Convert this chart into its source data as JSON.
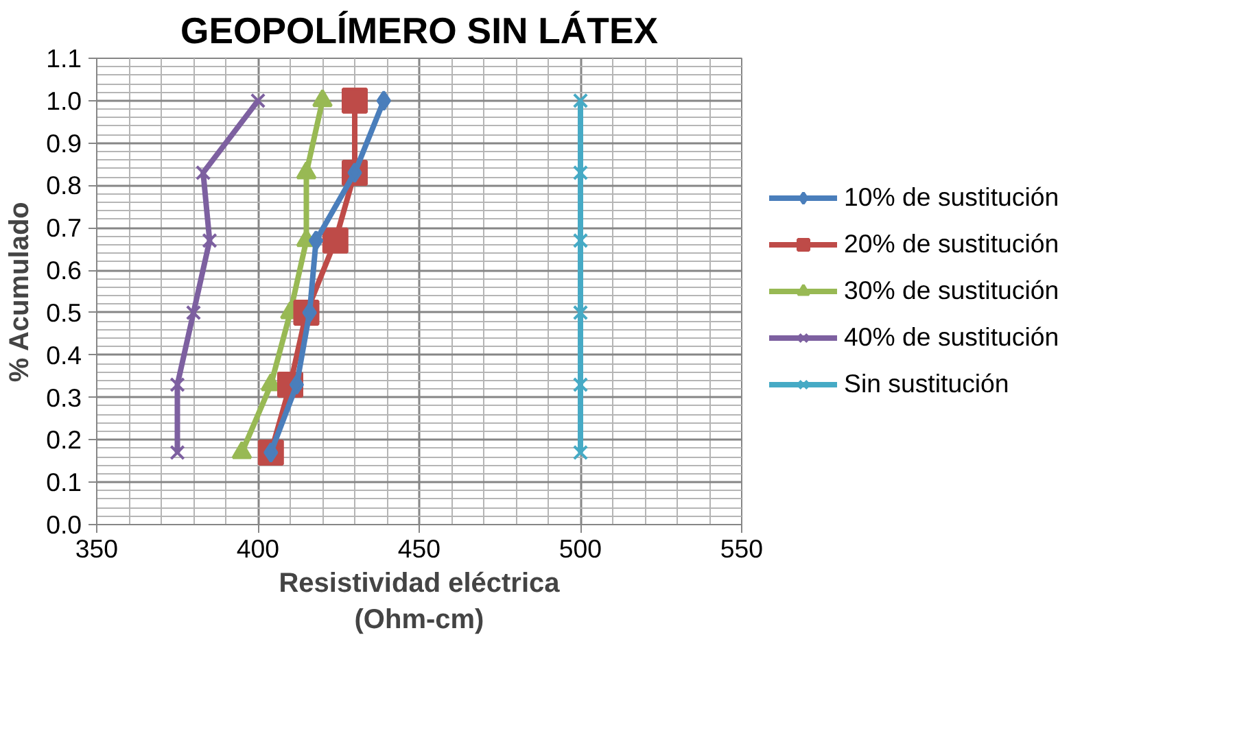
{
  "chart_data": {
    "type": "line",
    "title": "GEOPOLÍMERO SIN LÁTEX",
    "xlabel": "Resistividad eléctrica\n(Ohm-cm)",
    "ylabel": "% Acumulado",
    "xlim": [
      350,
      550
    ],
    "xticks": [
      350,
      400,
      450,
      500,
      550
    ],
    "ylim": [
      0.0,
      1.1
    ],
    "yticks": [
      {
        "value": 0.0,
        "label": "0.0"
      },
      0.1,
      0.2,
      0.3,
      0.4,
      0.5,
      0.6,
      0.7,
      0.8,
      0.9,
      {
        "value": 1.0,
        "label": "1.0"
      },
      1.1
    ],
    "grid": true,
    "legend": "right",
    "series": [
      {
        "name": "10% de sustitución",
        "color": "#4a7ebb",
        "marker": "diamond",
        "x": [
          404,
          412,
          416,
          418,
          430,
          439
        ],
        "values": [
          0.17,
          0.33,
          0.5,
          0.67,
          0.83,
          1.0
        ]
      },
      {
        "name": "20% de sustitución",
        "color": "#be4b48",
        "marker": "square",
        "x": [
          404,
          410,
          415,
          424,
          430,
          430
        ],
        "values": [
          0.17,
          0.33,
          0.5,
          0.67,
          0.83,
          1.0
        ]
      },
      {
        "name": "30% de sustitución",
        "color": "#98b954",
        "marker": "triangle",
        "x": [
          395,
          404,
          410,
          415,
          415,
          420
        ],
        "values": [
          0.17,
          0.33,
          0.5,
          0.67,
          0.83,
          1.0
        ]
      },
      {
        "name": "40% de sustitución",
        "color": "#7d60a0",
        "marker": "cross",
        "x": [
          375,
          375,
          380,
          385,
          383,
          400
        ],
        "values": [
          0.17,
          0.33,
          0.5,
          0.67,
          0.83,
          1.0
        ]
      },
      {
        "name": "Sin sustitución",
        "color": "#46aac5",
        "marker": "cross",
        "x": [
          500,
          500,
          500,
          500,
          500,
          500
        ],
        "values": [
          0.17,
          0.33,
          0.5,
          0.67,
          0.83,
          1.0
        ]
      }
    ]
  }
}
